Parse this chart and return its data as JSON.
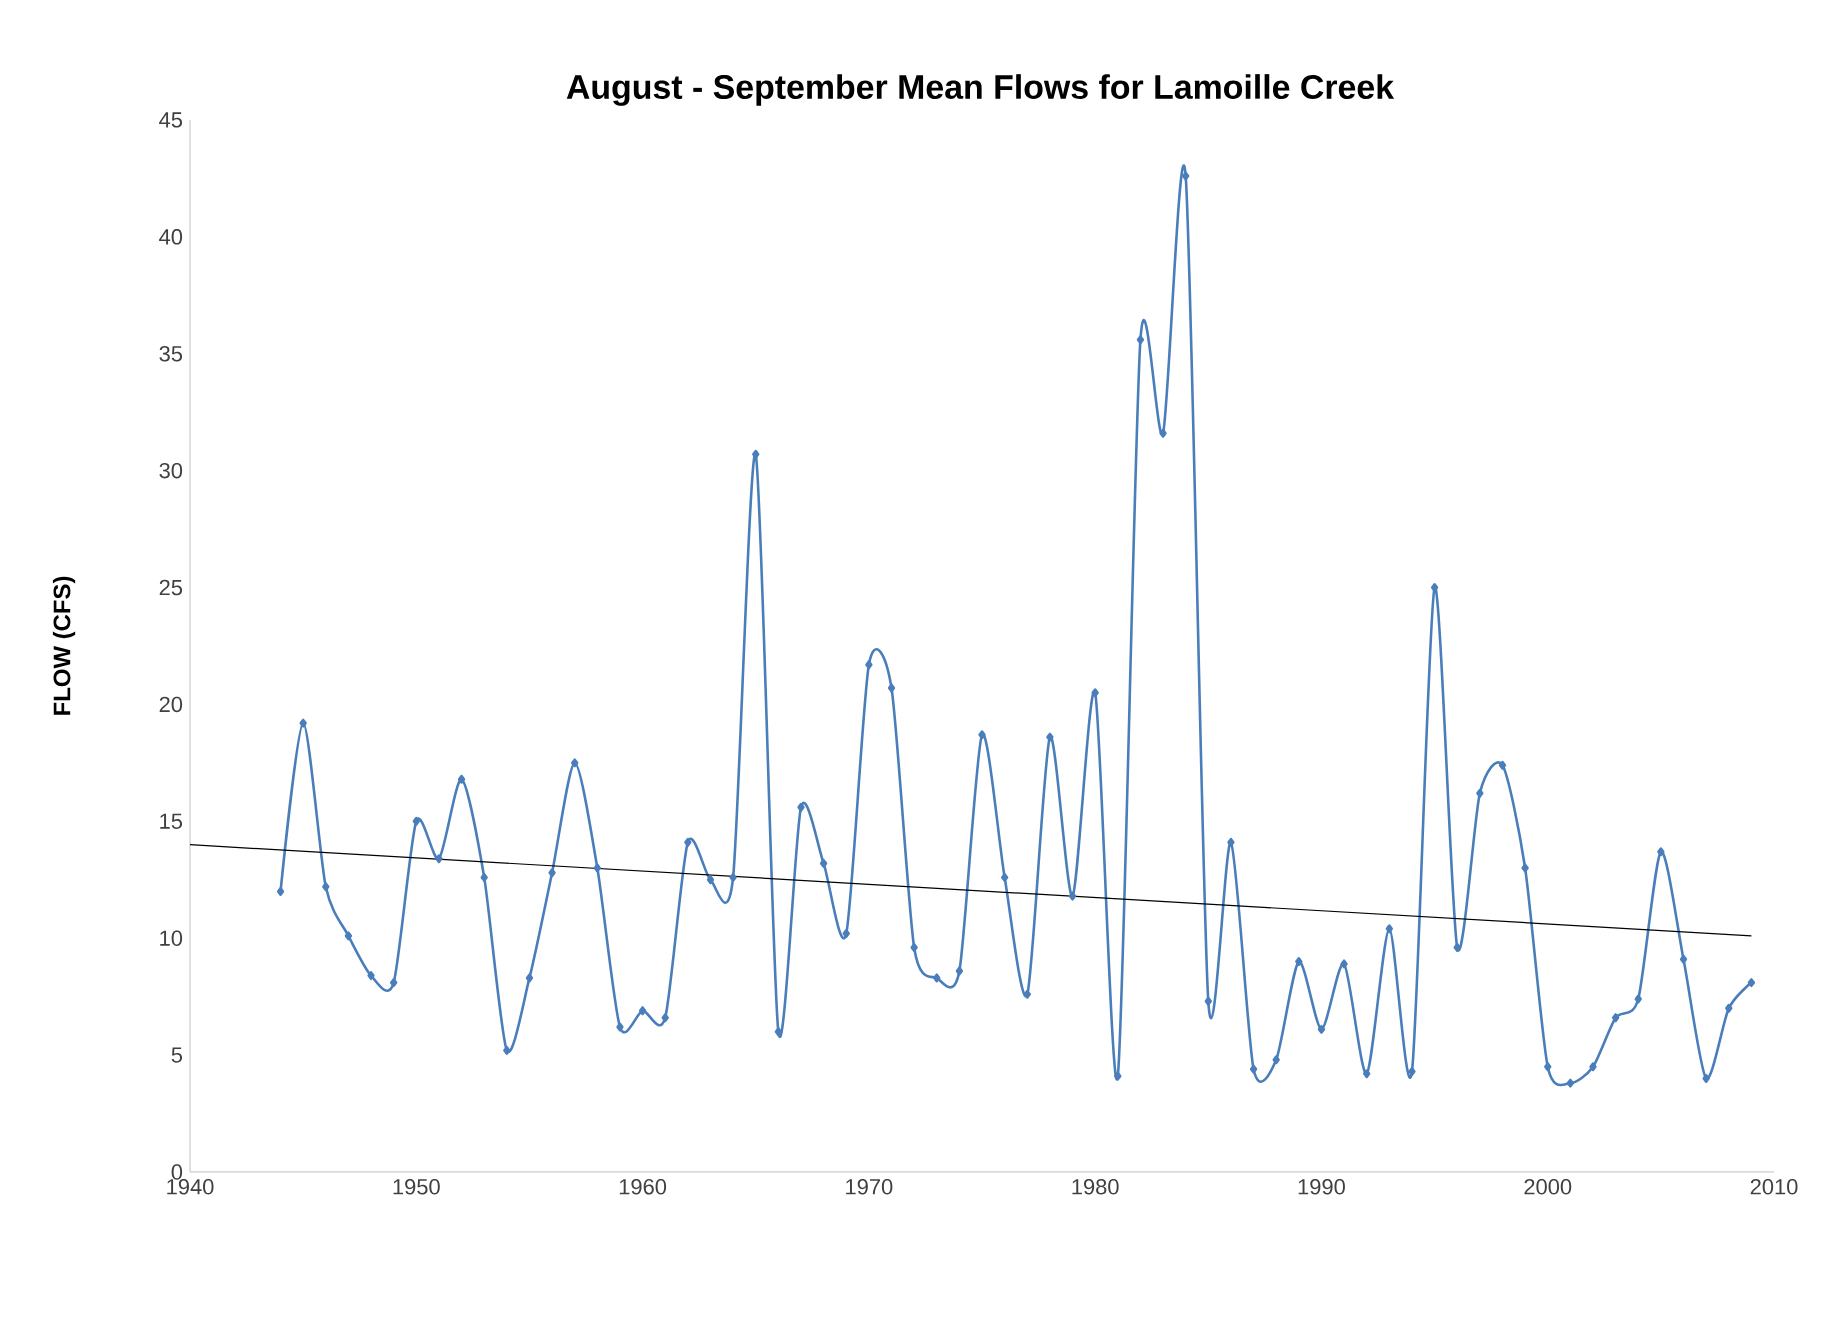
{
  "chart_data": {
    "type": "line",
    "title": "August - September Mean Flows for Lamoille Creek",
    "ylabel": "FLOW (CFS)",
    "xlim": [
      1940,
      2010
    ],
    "xticks": [
      1940,
      1950,
      1960,
      1970,
      1980,
      1990,
      2000,
      2010
    ],
    "ylim": [
      0,
      45
    ],
    "yticks": [
      0,
      5,
      10,
      15,
      20,
      25,
      30,
      35,
      40,
      45
    ],
    "grid": false,
    "marker": "diamond",
    "line_style": "solid",
    "series": [
      {
        "color": "#4a7ebb",
        "x": [
          1944,
          1945,
          1946,
          1947,
          1948,
          1949,
          1950,
          1951,
          1952,
          1953,
          1954,
          1955,
          1956,
          1957,
          1958,
          1959,
          1960,
          1961,
          1962,
          1963,
          1964,
          1965,
          1966,
          1967,
          1968,
          1969,
          1970,
          1971,
          1972,
          1973,
          1974,
          1975,
          1976,
          1977,
          1978,
          1979,
          1980,
          1981,
          1982,
          1983,
          1984,
          1985,
          1986,
          1987,
          1988,
          1989,
          1990,
          1991,
          1992,
          1993,
          1994,
          1995,
          1996,
          1997,
          1998,
          1999,
          2000,
          2001,
          2002,
          2003,
          2004,
          2005,
          2006,
          2007,
          2008,
          2009
        ],
        "values": [
          12,
          19.2,
          12.2,
          10.1,
          8.4,
          8.1,
          15,
          13.4,
          16.8,
          12.6,
          5.2,
          8.3,
          12.8,
          17.5,
          13,
          6.2,
          6.9,
          6.6,
          14.1,
          12.5,
          12.6,
          30.7,
          6,
          15.6,
          13.2,
          10.2,
          21.7,
          20.7,
          9.6,
          8.3,
          8.6,
          18.7,
          12.6,
          7.6,
          18.6,
          11.8,
          20.5,
          4.1,
          35.6,
          31.6,
          42.6,
          7.3,
          14.1,
          4.4,
          4.8,
          9,
          6.1,
          8.9,
          4.2,
          10.4,
          4.3,
          25,
          9.6,
          16.2,
          17.4,
          13,
          4.5,
          3.8,
          4.5,
          6.6,
          7.4,
          13.7,
          9.1,
          4,
          7,
          8.1
        ]
      },
      {
        "color": "#000000",
        "marker": "none",
        "x": [
          1940,
          2009
        ],
        "values": [
          14.0,
          10.1
        ]
      }
    ]
  }
}
